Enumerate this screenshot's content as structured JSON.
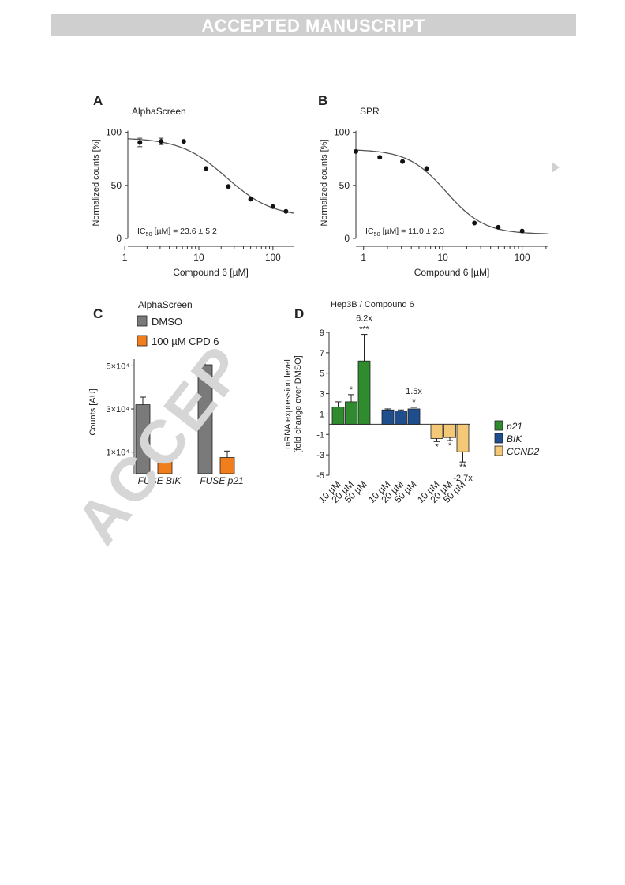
{
  "banner": {
    "text": "ACCEPTED MANUSCRIPT"
  },
  "watermark": {
    "text": "ACCEP"
  },
  "panels": {
    "A": {
      "letter": "A"
    },
    "B": {
      "letter": "B"
    },
    "C": {
      "letter": "C"
    },
    "D": {
      "letter": "D"
    }
  },
  "chart_data": [
    {
      "panel": "A",
      "type": "scatter",
      "title": "AlphaScreen",
      "xlabel": "Compound 6 [µM]",
      "ylabel": "Normalized counts [%]",
      "xscale": "log",
      "xlim": [
        1.1,
        190
      ],
      "ylim": [
        0,
        105
      ],
      "xticks": [
        "1",
        "10",
        "100"
      ],
      "yticks": [
        "0",
        "50",
        "100"
      ],
      "annotation": "IC50 [µM] = 23.6 ± 5.2",
      "points": [
        {
          "x": 1.6,
          "y": 90.5,
          "err": 4
        },
        {
          "x": 3.1,
          "y": 91.5,
          "err": 3
        },
        {
          "x": 6.25,
          "y": 91.5,
          "err": 0
        },
        {
          "x": 12.5,
          "y": 66,
          "err": 0
        },
        {
          "x": 25,
          "y": 49,
          "err": 0
        },
        {
          "x": 50,
          "y": 37,
          "err": 0
        },
        {
          "x": 100,
          "y": 30,
          "err": 0
        },
        {
          "x": 150,
          "y": 25.5,
          "err": 0
        }
      ],
      "fit": {
        "top": 95,
        "bottom": 20,
        "ic50": 23.6,
        "hill": 1.4
      }
    },
    {
      "panel": "B",
      "type": "scatter",
      "title": "SPR",
      "xlabel": "Compound 6 [µM]",
      "ylabel": "Normalized counts [%]",
      "xscale": "log",
      "xlim": [
        0.8,
        210
      ],
      "ylim": [
        0,
        105
      ],
      "xticks": [
        "1",
        "10",
        "100"
      ],
      "yticks": [
        "0",
        "50",
        "100"
      ],
      "annotation": "IC50 [µM] = 11.0 ± 2.3",
      "points": [
        {
          "x": 0.8,
          "y": 82,
          "err": 0
        },
        {
          "x": 1.6,
          "y": 76.5,
          "err": 0
        },
        {
          "x": 3.1,
          "y": 72.5,
          "err": 0
        },
        {
          "x": 6.25,
          "y": 66,
          "err": 0
        },
        {
          "x": 25,
          "y": 14.5,
          "err": 0
        },
        {
          "x": 50,
          "y": 10.5,
          "err": 0
        },
        {
          "x": 100,
          "y": 7,
          "err": 0
        }
      ],
      "fit": {
        "top": 84,
        "bottom": 4,
        "ic50": 11.0,
        "hill": 1.8
      }
    },
    {
      "panel": "C",
      "type": "bar",
      "title": "AlphaScreen",
      "ylabel": "Counts [AU]",
      "yticks": [
        "1×10⁴",
        "3×10⁴",
        "5×10⁴"
      ],
      "ylim": [
        0,
        56000
      ],
      "categories": [
        "FUSE BIK",
        "FUSE p21"
      ],
      "series": [
        {
          "name": "DMSO",
          "color": "#7a7a7a",
          "values": [
            32000,
            50500
          ],
          "errors": [
            3500,
            2000
          ]
        },
        {
          "name": "100 µM CPD 6",
          "color": "#f07e1c",
          "values": [
            6000,
            7500
          ],
          "errors": [
            500,
            3000
          ]
        }
      ]
    },
    {
      "panel": "D",
      "type": "bar",
      "title": "Hep3B / Compound 6",
      "ylabel_lines": [
        "mRNA expression level",
        "[fold change over DMSO]"
      ],
      "ylim": [
        -5,
        9
      ],
      "yticks": [
        "-5",
        "-3",
        "-1",
        "1",
        "3",
        "5",
        "7",
        "9"
      ],
      "categories": [
        "10 µM",
        "20 µM",
        "50 µM"
      ],
      "legend": [
        {
          "name": "p21",
          "color": "#2e8b2e"
        },
        {
          "name": "BIK",
          "color": "#1f4e8f"
        },
        {
          "name": "CCND2",
          "color": "#f5c878"
        }
      ],
      "series": [
        {
          "name": "p21",
          "color": "#2e8b2e",
          "values": [
            1.7,
            2.2,
            6.2
          ],
          "errors": [
            0.5,
            0.7,
            2.6
          ],
          "marks": [
            "",
            "*",
            "***"
          ],
          "note": "6.2x"
        },
        {
          "name": "BIK",
          "color": "#1f4e8f",
          "values": [
            1.4,
            1.3,
            1.5
          ],
          "errors": [
            0.1,
            0.1,
            0.15
          ],
          "marks": [
            "",
            "",
            "*"
          ],
          "note": "1.5x"
        },
        {
          "name": "CCND2",
          "color": "#f5c878",
          "values": [
            -1.4,
            -1.3,
            -2.7
          ],
          "errors": [
            0.3,
            0.3,
            1.0
          ],
          "marks": [
            "*",
            "*",
            "**"
          ],
          "note": "-2.7x"
        }
      ]
    }
  ]
}
